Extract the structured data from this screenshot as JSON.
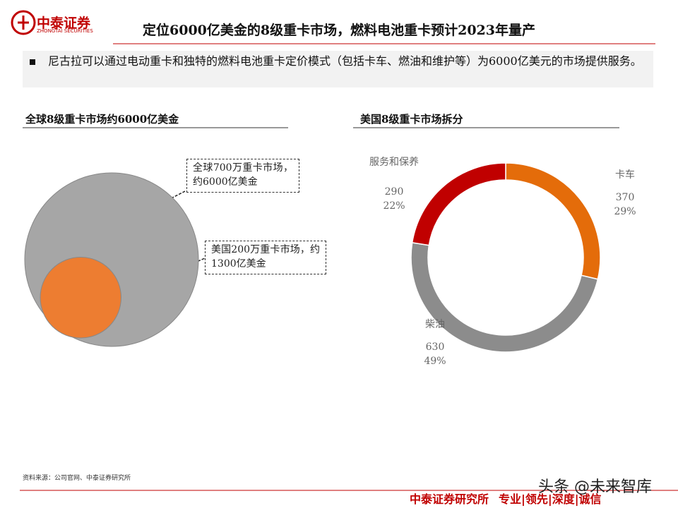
{
  "header": {
    "logo_name": "中泰证券",
    "logo_sub": "ZHONGTAI SECURITIES",
    "title": "定位6000亿美金的8级重卡市场，燃料电池重卡预计2023年量产"
  },
  "summary": "尼古拉可以通过电动重卡和独特的燃料电池重卡定价模式（包括卡车、燃油和维护等）为6000亿美元的市场提供服务。",
  "chart_data": [
    {
      "type": "bubble",
      "title": "全球8级重卡市场约6000亿美金",
      "circles": [
        {
          "label": "全球700万重卡市场，约6000亿美金",
          "value": 6000,
          "color": "#a6a6a6"
        },
        {
          "label": "美国200万重卡市场，约1300亿美金",
          "value": 1300,
          "color": "#ed7d31"
        }
      ]
    },
    {
      "type": "donut",
      "title": "美国8级重卡市场拆分",
      "categories": [
        "卡车",
        "柴油",
        "服务和保养"
      ],
      "values": [
        370,
        630,
        290
      ],
      "percent_labels": [
        "29%",
        "49%",
        "22%"
      ],
      "colors": [
        "#e46c0a",
        "#8c8c8c",
        "#c00000"
      ]
    }
  ],
  "source": "资料来源：公司官网、中泰证券研究所",
  "footer": {
    "brand": "中泰证券研究所",
    "slogan": "专业|领先|深度|诚信"
  },
  "watermark": "头条 @未来智库"
}
